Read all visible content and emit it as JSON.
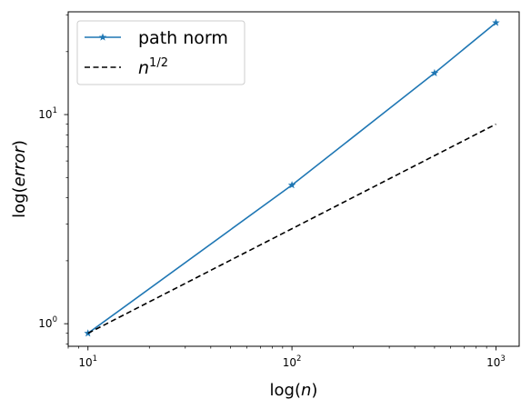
{
  "chart_data": {
    "type": "line",
    "xscale": "log",
    "yscale": "log",
    "xlim": [
      8,
      1300
    ],
    "ylim": [
      0.78,
      31
    ],
    "xlabel": {
      "prefix": "log(",
      "var": "n",
      "suffix": ")"
    },
    "ylabel": {
      "prefix": "log(",
      "var": "error",
      "suffix": ")"
    },
    "x_ticks": [
      {
        "base": "10",
        "exp": "1",
        "value": 10
      },
      {
        "base": "10",
        "exp": "2",
        "value": 100
      },
      {
        "base": "10",
        "exp": "3",
        "value": 1000
      }
    ],
    "y_ticks": [
      {
        "base": "10",
        "exp": "0",
        "value": 1
      },
      {
        "base": "10",
        "exp": "1",
        "value": 10
      }
    ],
    "legend_position": "top-left",
    "grid": false,
    "series": [
      {
        "name": "path norm",
        "name_var": "",
        "name_sup": "",
        "style": "solid",
        "marker": "star",
        "color": "#1f77b4",
        "x": [
          10,
          100,
          500,
          1000
        ],
        "y": [
          0.9,
          4.6,
          15.8,
          27.5
        ]
      },
      {
        "name": "",
        "name_var": "n",
        "name_sup": "1/2",
        "style": "dashed",
        "marker": "none",
        "color": "#000000",
        "x": [
          10,
          1000
        ],
        "y": [
          0.9,
          9.0
        ]
      }
    ]
  }
}
